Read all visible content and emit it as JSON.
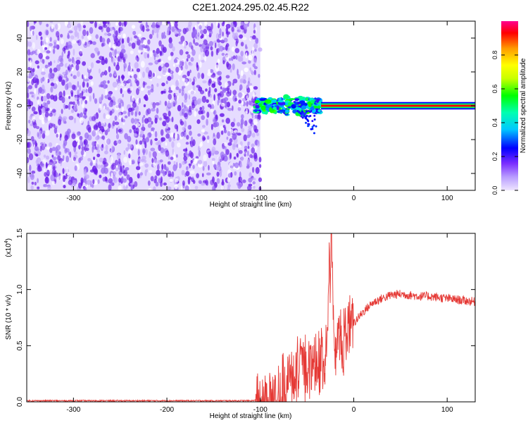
{
  "figure_title": "C2E1.2024.295.02.45.R22",
  "colorbar": {
    "label": "Normalized spectral amplitude",
    "ticks": [
      "0.0",
      "0.2",
      "0.4",
      "0.6",
      "0.8"
    ],
    "range": [
      0,
      1
    ]
  },
  "chart_data": [
    {
      "type": "heatmap",
      "title": "",
      "xlabel": "Height of straight line (km)",
      "ylabel": "Frequency (Hz)",
      "xlim": [
        -350,
        130
      ],
      "ylim": [
        -50,
        50
      ],
      "xticks": [
        -300,
        -200,
        -100,
        0,
        100
      ],
      "xtick_labels": [
        "-300",
        "-200",
        "-100",
        "0",
        "100"
      ],
      "yticks": [
        -40,
        -20,
        0,
        20,
        40
      ],
      "ytick_labels": [
        "-40",
        "-20",
        "0",
        "20",
        "40"
      ],
      "colormap": "rainbow (purple = 0, red = 1)",
      "description_regions": [
        {
          "x": [
            -350,
            -100
          ],
          "y": [
            -50,
            50
          ],
          "amplitude": [
            0.0,
            0.15
          ],
          "pattern": "noise"
        },
        {
          "x": [
            -105,
            -35
          ],
          "y": [
            -4,
            4
          ],
          "amplitude": [
            0.2,
            0.6
          ],
          "pattern": "broadened line, drifting to about -20 Hz near -45 km"
        },
        {
          "x": [
            -35,
            130
          ],
          "y": [
            -1,
            1
          ],
          "amplitude": [
            0.85,
            1.0
          ],
          "pattern": "narrow line at 0 Hz"
        }
      ]
    },
    {
      "type": "line",
      "title": "",
      "xlabel": "Height of straight line (km)",
      "ylabel": "SNR (10 * v/v)",
      "y_multiplier": "(x10",
      "y_multiplier_exp": "4",
      "xlim": [
        -350,
        130
      ],
      "ylim": [
        0,
        1.5
      ],
      "xticks": [
        -300,
        -200,
        -100,
        0,
        100
      ],
      "xtick_labels": [
        "-300",
        "-200",
        "-100",
        "0",
        "100"
      ],
      "yticks": [
        0,
        0.5,
        1.0,
        1.5
      ],
      "ytick_labels": [
        "0.0",
        "0.5",
        "1.0",
        "1.5"
      ],
      "series": [
        {
          "color": "#e53935",
          "x": [
            -350,
            -300,
            -250,
            -200,
            -150,
            -110,
            -100,
            -90,
            -80,
            -70,
            -60,
            -50,
            -40,
            -30,
            -24,
            -20,
            -15,
            -10,
            -5,
            0,
            10,
            20,
            30,
            40,
            50,
            60,
            70,
            80,
            90,
            100,
            110,
            120,
            130
          ],
          "y": [
            0.01,
            0.01,
            0.01,
            0.01,
            0.01,
            0.01,
            0.02,
            0.03,
            0.08,
            0.18,
            0.25,
            0.3,
            0.34,
            0.4,
            1.5,
            0.45,
            0.52,
            0.6,
            0.65,
            0.7,
            0.8,
            0.88,
            0.92,
            0.95,
            0.96,
            0.95,
            0.94,
            0.94,
            0.93,
            0.92,
            0.91,
            0.9,
            0.89
          ]
        }
      ]
    }
  ]
}
